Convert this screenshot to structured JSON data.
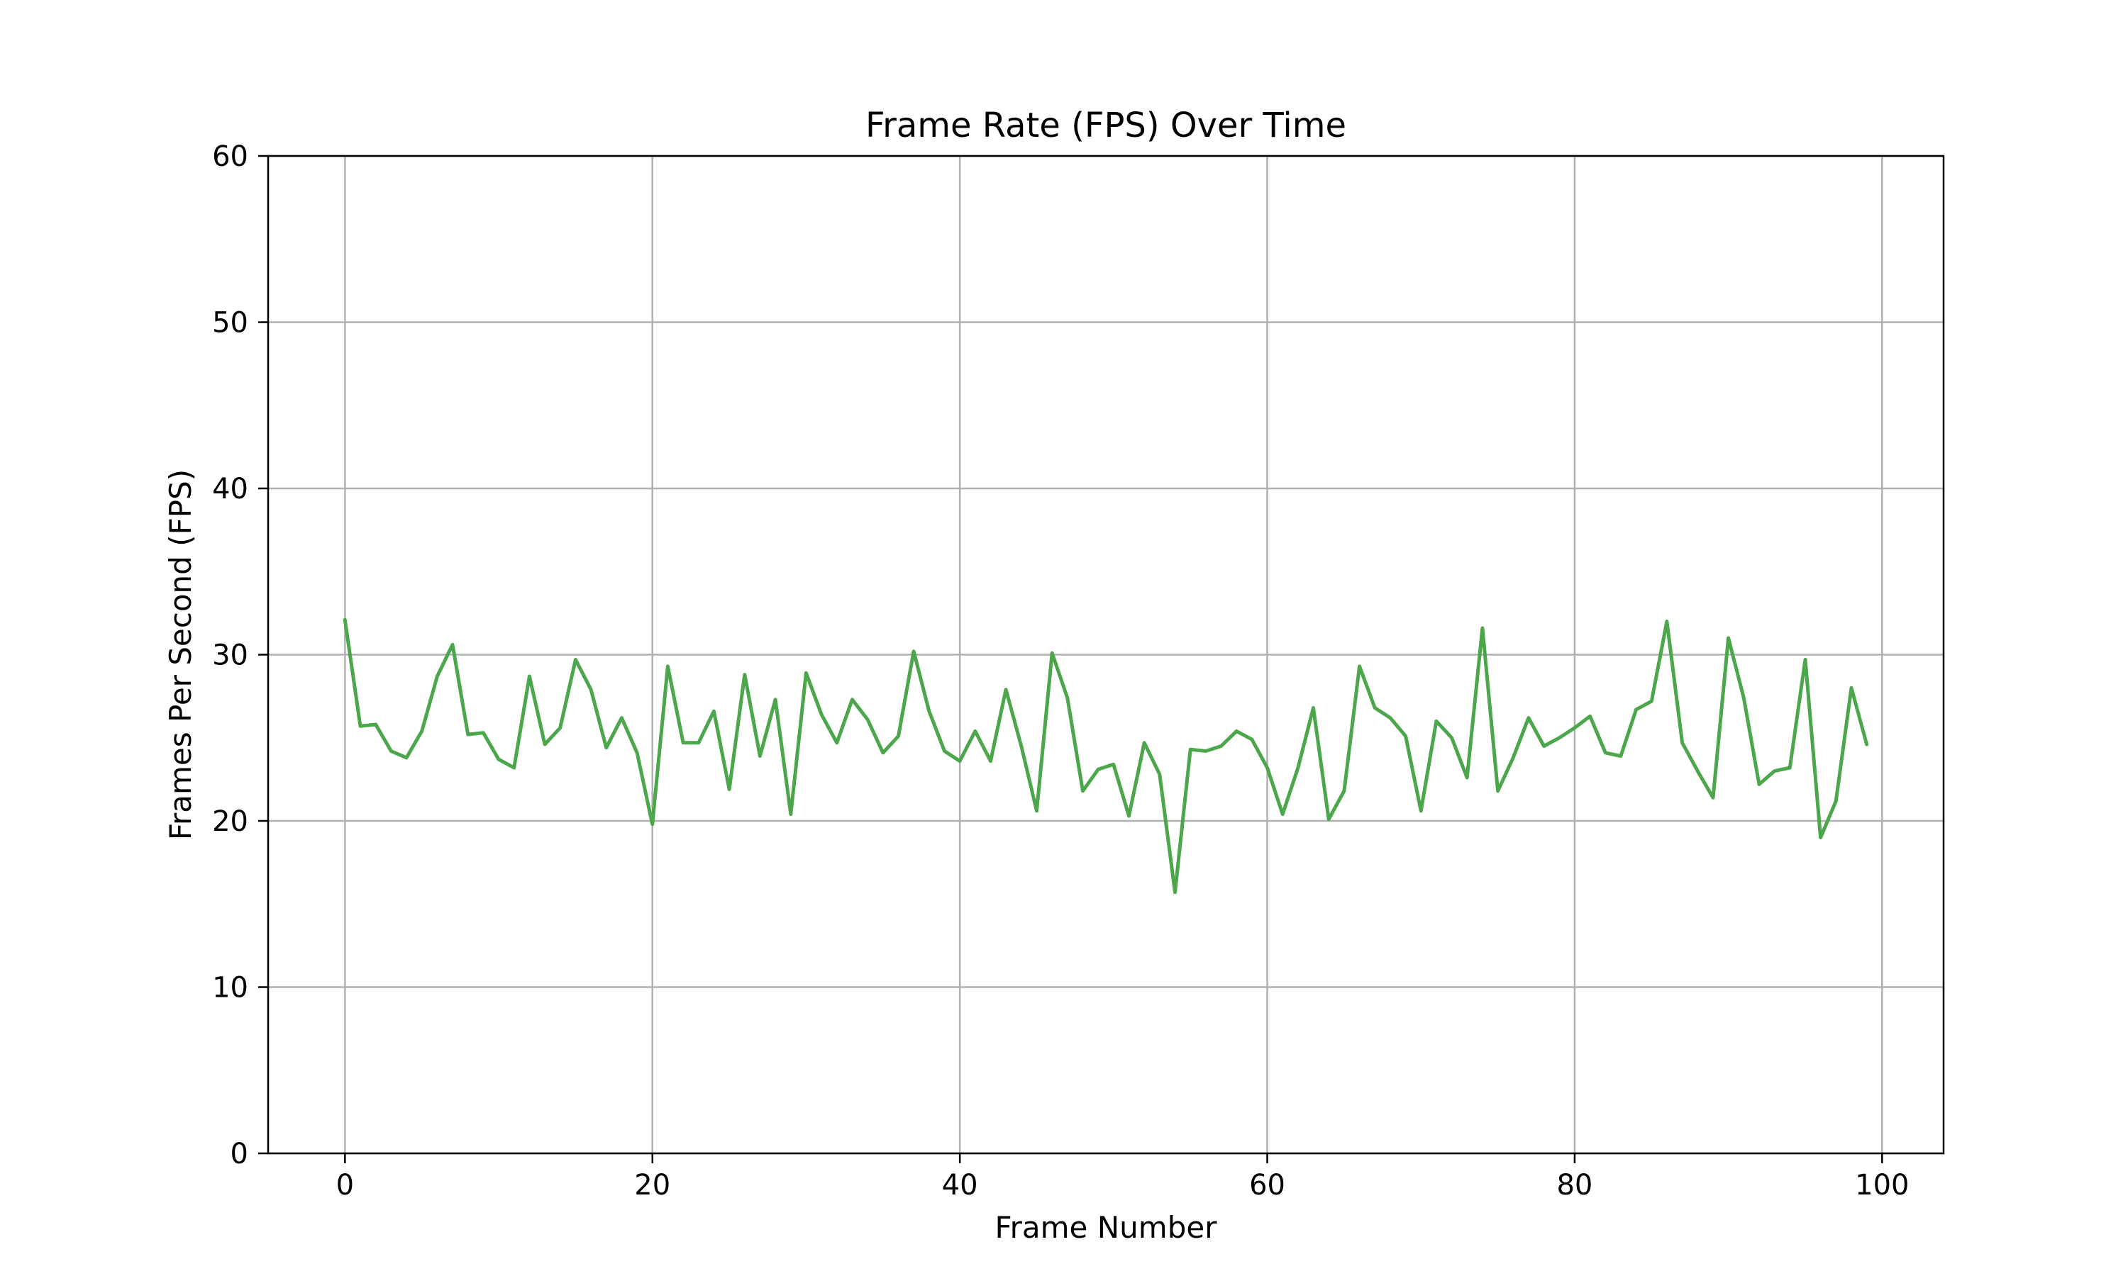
{
  "chart_data": {
    "type": "line",
    "title": "Frame Rate (FPS) Over Time",
    "xlabel": "Frame Number",
    "ylabel": "Frames Per Second (FPS)",
    "xlim": [
      -5,
      104
    ],
    "ylim": [
      0,
      60
    ],
    "xticks": [
      0,
      20,
      40,
      60,
      80,
      100
    ],
    "yticks": [
      0,
      10,
      20,
      30,
      40,
      50,
      60
    ],
    "grid": true,
    "line_color": "#4ca64c",
    "grid_color": "#b0b0b0",
    "x": [
      0,
      1,
      2,
      3,
      4,
      5,
      6,
      7,
      8,
      9,
      10,
      11,
      12,
      13,
      14,
      15,
      16,
      17,
      18,
      19,
      20,
      21,
      22,
      23,
      24,
      25,
      26,
      27,
      28,
      29,
      30,
      31,
      32,
      33,
      34,
      35,
      36,
      37,
      38,
      39,
      40,
      41,
      42,
      43,
      44,
      45,
      46,
      47,
      48,
      49,
      50,
      51,
      52,
      53,
      54,
      55,
      56,
      57,
      58,
      59,
      60,
      61,
      62,
      63,
      64,
      65,
      66,
      67,
      68,
      69,
      70,
      71,
      72,
      73,
      74,
      75,
      76,
      77,
      78,
      79,
      80,
      81,
      82,
      83,
      84,
      85,
      86,
      87,
      88,
      89,
      90,
      91,
      92,
      93,
      94,
      95,
      96,
      97,
      98,
      99
    ],
    "values": [
      32.1,
      25.7,
      25.8,
      24.2,
      23.8,
      25.4,
      28.7,
      30.6,
      25.2,
      25.3,
      23.7,
      23.2,
      28.7,
      24.6,
      25.6,
      29.7,
      27.9,
      24.4,
      26.2,
      24.1,
      19.8,
      29.3,
      24.7,
      24.7,
      26.6,
      21.9,
      28.8,
      23.9,
      27.3,
      20.4,
      28.9,
      26.4,
      24.7,
      27.3,
      26.1,
      24.1,
      25.1,
      30.2,
      26.6,
      24.2,
      23.6,
      25.4,
      23.6,
      27.9,
      24.5,
      20.6,
      30.1,
      27.4,
      21.8,
      23.1,
      23.4,
      20.3,
      24.7,
      22.8,
      15.7,
      24.3,
      24.2,
      24.5,
      25.4,
      24.9,
      23.2,
      20.4,
      23.2,
      26.8,
      20.1,
      21.8,
      29.3,
      26.8,
      26.2,
      25.1,
      20.6,
      26.0,
      25.0,
      22.6,
      31.6,
      21.8,
      23.8,
      26.2,
      24.5,
      25.0,
      25.6,
      26.3,
      24.1,
      23.9,
      26.7,
      27.2,
      32.0,
      24.7,
      23.0,
      21.4,
      31.0,
      27.4,
      22.2,
      23.0,
      23.2,
      29.7,
      19.0,
      21.2,
      28.0,
      24.6
    ]
  }
}
